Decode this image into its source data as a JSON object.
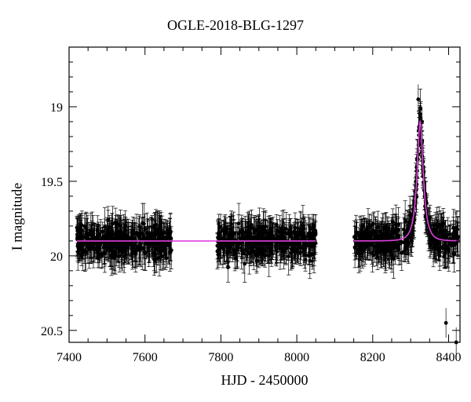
{
  "chart_data": {
    "type": "scatter",
    "title": "OGLE-2018-BLG-1297",
    "xlabel": "HJD - 2450000",
    "ylabel": "I magnitude",
    "xlim": [
      7400,
      8430
    ],
    "ylim": [
      20.58,
      18.6
    ],
    "y_inverted": true,
    "x_ticks": [
      7400,
      7600,
      7800,
      8000,
      8200,
      8400
    ],
    "y_ticks": [
      19,
      19.5,
      20,
      20.5
    ],
    "x_tick_labels": [
      "7400",
      "7600",
      "7800",
      "8000",
      "8200",
      "8400"
    ],
    "y_tick_labels": [
      "19",
      "19.5",
      "20",
      "20.5"
    ],
    "grid": false,
    "legend": "none",
    "colors": {
      "data": "#000000",
      "model": "#e040e0"
    },
    "series": [
      {
        "kind": "observations",
        "seasons": [
          {
            "x_range": [
              7420,
              7670
            ],
            "baseline_mag": 19.9,
            "scatter_mag": 0.13
          },
          {
            "x_range": [
              7790,
              8050
            ],
            "baseline_mag": 19.9,
            "scatter_mag": 0.13
          },
          {
            "x_range": [
              8150,
              8425
            ],
            "baseline_mag": 19.9,
            "scatter_mag": 0.13
          }
        ],
        "typical_error_mag": 0.1,
        "outlier_points": [
          {
            "x": 8320,
            "y": 18.95
          },
          {
            "x": 8325,
            "y": 19.05
          },
          {
            "x": 8330,
            "y": 19.1
          },
          {
            "x": 8420,
            "y": 20.58
          },
          {
            "x": 8393,
            "y": 20.45
          }
        ]
      },
      {
        "kind": "model",
        "model_type": "point-lens microlensing",
        "baseline_mag": 19.9,
        "peak_time": 8325,
        "peak_mag": 19.1,
        "t_E_days": 18,
        "x_range": [
          7420,
          8430
        ],
        "segments": [
          [
            7420,
            8050
          ],
          [
            8150,
            8430
          ]
        ]
      }
    ]
  }
}
